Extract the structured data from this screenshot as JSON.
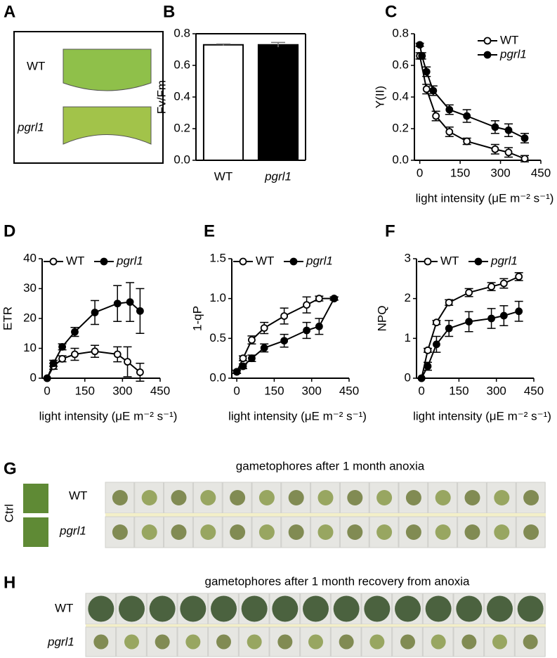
{
  "panel_labels": [
    "A",
    "B",
    "C",
    "D",
    "E",
    "F",
    "G",
    "H"
  ],
  "panel_a": {
    "rows": [
      "WT",
      "pgrl1"
    ]
  },
  "panel_g": {
    "title": "gametophores after 1 month anoxia",
    "rows": [
      "WT",
      "pgrl1"
    ],
    "control": "Ctrl"
  },
  "panel_h": {
    "title": "gametophores after 1 month recovery from anoxia",
    "rows": [
      "WT",
      "pgrl1"
    ]
  },
  "chart_data": [
    {
      "type": "bar",
      "ylabel": "Fv/Fm",
      "categories": [
        "WT",
        "pgrl1"
      ],
      "values": [
        0.73,
        0.73
      ],
      "errors": [
        0.005,
        0.015
      ],
      "colors": [
        "#ffffff",
        "#000000"
      ],
      "ylim": [
        0,
        0.8
      ],
      "yticks": [
        {
          "value": 0,
          "label": "0.0"
        },
        0.2,
        0.4,
        0.6,
        0.8
      ]
    },
    {
      "type": "line",
      "ylabel": "Y(II)",
      "xlabel": "light intensity (μE m⁻² s⁻¹)",
      "legend": "upper right",
      "xlim": [
        -20,
        450
      ],
      "xticks": [
        0,
        150,
        300,
        450
      ],
      "ylim": [
        0,
        0.8
      ],
      "yticks": [
        {
          "value": 0,
          "label": "0.0"
        },
        0.2,
        0.4,
        0.6,
        0.8
      ],
      "series": [
        {
          "name": "WT",
          "color": "#000000",
          "fill": "#ffffff",
          "x": [
            0,
            25,
            60,
            110,
            175,
            280,
            330,
            390
          ],
          "values": [
            0.66,
            0.45,
            0.28,
            0.18,
            0.12,
            0.07,
            0.05,
            0.01
          ],
          "errors": [
            0.02,
            0.03,
            0.03,
            0.03,
            0.02,
            0.03,
            0.03,
            0.02
          ]
        },
        {
          "name": "pgrl1",
          "color": "#000000",
          "fill": "#000000",
          "x": [
            0,
            8,
            25,
            50,
            110,
            175,
            280,
            330,
            390
          ],
          "values": [
            0.73,
            0.66,
            0.56,
            0.44,
            0.32,
            0.28,
            0.21,
            0.19,
            0.14
          ],
          "errors": [
            0.01,
            0.02,
            0.03,
            0.03,
            0.03,
            0.04,
            0.04,
            0.04,
            0.03
          ]
        }
      ]
    },
    {
      "type": "line",
      "ylabel": "ETR",
      "xlabel": "light intensity (μE m⁻² s⁻¹)",
      "legend": "upper center",
      "xlim": [
        -20,
        450
      ],
      "xticks": [
        0,
        150,
        300,
        450
      ],
      "ylim": [
        0,
        40
      ],
      "yticks": [
        0,
        10,
        20,
        30,
        40
      ],
      "series": [
        {
          "name": "WT",
          "color": "#000000",
          "fill": "#ffffff",
          "x": [
            0,
            25,
            60,
            110,
            190,
            280,
            320,
            370
          ],
          "values": [
            0,
            4,
            6.5,
            8,
            9,
            8,
            5.5,
            2
          ],
          "errors": [
            0,
            1,
            1,
            2,
            2,
            2.5,
            5,
            3
          ]
        },
        {
          "name": "pgrl1",
          "color": "#000000",
          "fill": "#000000",
          "x": [
            0,
            25,
            60,
            110,
            190,
            280,
            330,
            370
          ],
          "values": [
            0,
            5,
            10.5,
            15.5,
            22,
            25,
            25.5,
            22.5
          ],
          "errors": [
            0,
            1,
            1,
            1.5,
            4,
            6,
            6.5,
            7.5
          ]
        }
      ]
    },
    {
      "type": "line",
      "ylabel": "1-qP",
      "xlabel": "light intensity (μE m⁻² s⁻¹)",
      "legend": "upper center",
      "xlim": [
        -20,
        450
      ],
      "xticks": [
        0,
        150,
        300,
        450
      ],
      "ylim": [
        0,
        1.5
      ],
      "yticks": [
        {
          "value": 0,
          "label": "0.0"
        },
        0.5,
        {
          "value": 1,
          "label": "1.0"
        },
        1.5
      ],
      "series": [
        {
          "name": "WT",
          "color": "#000000",
          "fill": "#ffffff",
          "x": [
            0,
            25,
            60,
            110,
            190,
            280,
            330,
            390
          ],
          "values": [
            0.08,
            0.25,
            0.48,
            0.63,
            0.78,
            0.92,
            1.0,
            1.0
          ],
          "errors": [
            0.02,
            0.03,
            0.05,
            0.07,
            0.1,
            0.1,
            0.03,
            0.02
          ]
        },
        {
          "name": "pgrl1",
          "color": "#000000",
          "fill": "#000000",
          "x": [
            0,
            25,
            60,
            110,
            190,
            280,
            330,
            390
          ],
          "values": [
            0.08,
            0.15,
            0.25,
            0.38,
            0.47,
            0.6,
            0.65,
            1.0
          ],
          "errors": [
            0.02,
            0.03,
            0.04,
            0.05,
            0.08,
            0.1,
            0.1,
            0.02
          ]
        }
      ]
    },
    {
      "type": "line",
      "ylabel": "NPQ",
      "xlabel": "light intensity (μE m⁻² s⁻¹)",
      "legend": "upper center",
      "xlim": [
        -20,
        450
      ],
      "xticks": [
        0,
        150,
        300,
        450
      ],
      "ylim": [
        0,
        3
      ],
      "yticks": [
        0,
        1,
        2,
        3
      ],
      "series": [
        {
          "name": "WT",
          "color": "#000000",
          "fill": "#ffffff",
          "x": [
            0,
            25,
            60,
            110,
            190,
            280,
            330,
            390
          ],
          "values": [
            0,
            0.7,
            1.4,
            1.9,
            2.15,
            2.3,
            2.38,
            2.55
          ],
          "errors": [
            0,
            0.05,
            0.05,
            0.07,
            0.1,
            0.1,
            0.12,
            0.1
          ]
        },
        {
          "name": "pgrl1",
          "color": "#000000",
          "fill": "#000000",
          "x": [
            0,
            25,
            60,
            110,
            190,
            280,
            330,
            390
          ],
          "values": [
            0,
            0.3,
            0.85,
            1.25,
            1.42,
            1.5,
            1.57,
            1.68
          ],
          "errors": [
            0,
            0.1,
            0.2,
            0.2,
            0.25,
            0.25,
            0.25,
            0.25
          ]
        }
      ]
    }
  ]
}
